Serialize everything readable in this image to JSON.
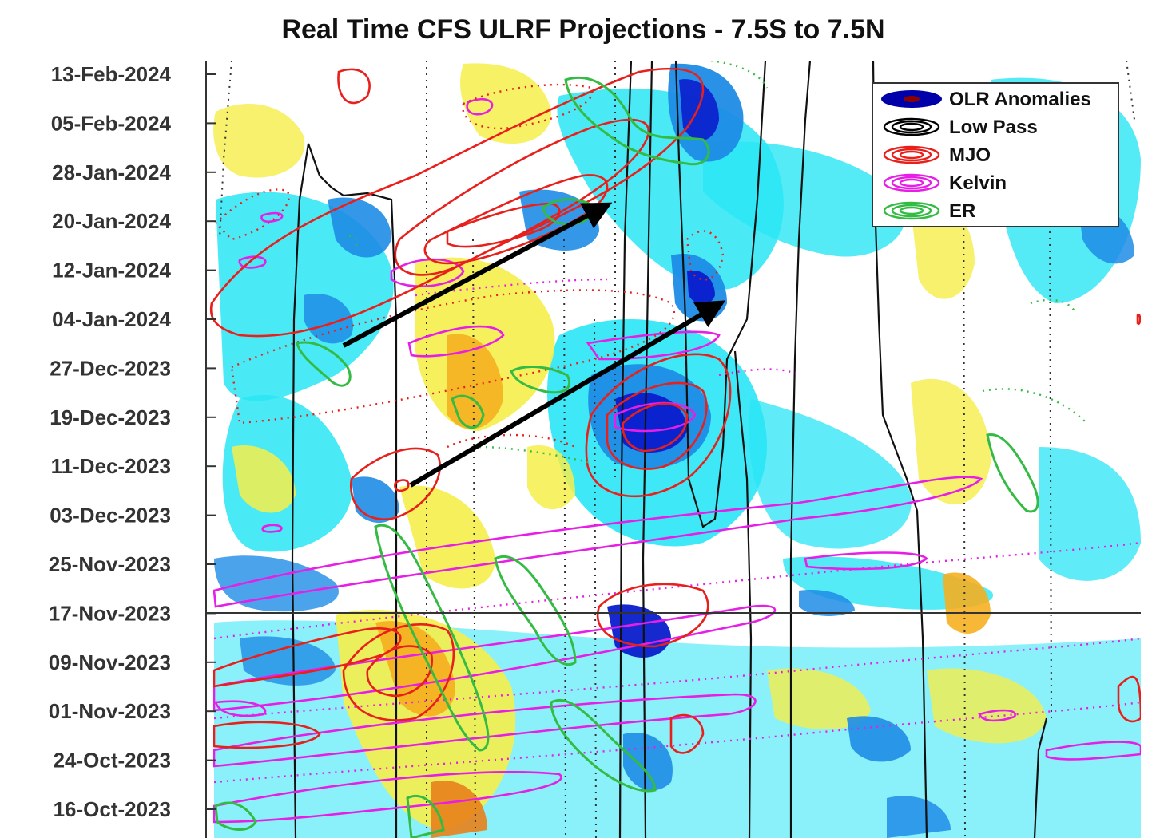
{
  "chart_data": {
    "type": "heatmap",
    "title": "Real Time CFS ULRF Projections - 7.5S to 7.5N",
    "y_tick_labels": [
      "13-Feb-2024",
      "05-Feb-2024",
      "28-Jan-2024",
      "20-Jan-2024",
      "12-Jan-2024",
      "04-Jan-2024",
      "27-Dec-2023",
      "19-Dec-2023",
      "11-Dec-2023",
      "03-Dec-2023",
      "25-Nov-2023",
      "17-Nov-2023",
      "09-Nov-2023",
      "01-Nov-2023",
      "24-Oct-2023",
      "16-Oct-2023"
    ],
    "forecast_start": "17-Nov-2023",
    "legend": {
      "placement": "top-right",
      "entries": [
        {
          "label": "OLR Anomalies",
          "color": "#0000aa",
          "inner": "#8b0000"
        },
        {
          "label": "Low Pass",
          "color": "#000000",
          "inner": "#000000"
        },
        {
          "label": "MJO",
          "color": "#e8201c",
          "inner": "#e8201c"
        },
        {
          "label": "Kelvin",
          "color": "#e61ee6",
          "inner": "#e61ee6"
        },
        {
          "label": "ER",
          "color": "#33bb44",
          "inner": "#33bb44"
        }
      ]
    },
    "colors": {
      "shade_light_blue": "#29e6f5",
      "shade_mid_blue": "#1e8ce6",
      "shade_dark_blue": "#0a1ecc",
      "shade_yellow": "#f5ee4a",
      "shade_orange": "#f5b020",
      "shade_dark_orange": "#e8801a",
      "mjo": "#e8201c",
      "kelvin": "#e61ee6",
      "er": "#33bb44",
      "low_pass": "#111111"
    },
    "annotations": [
      {
        "type": "arrow",
        "from_date": "01-Jan-2024",
        "to_date": "21-Jan-2024"
      },
      {
        "type": "arrow",
        "from_date": "06-Dec-2023",
        "to_date": "05-Jan-2024"
      }
    ]
  }
}
